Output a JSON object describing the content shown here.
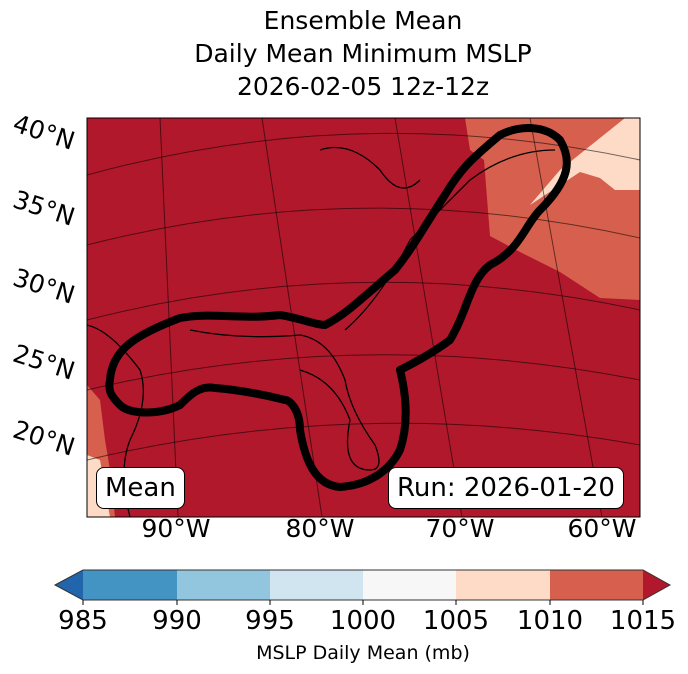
{
  "title": {
    "line1": "Ensemble Mean",
    "line2": "Daily Mean Minimum MSLP",
    "line3": "2026-02-05 12z-12z"
  },
  "map": {
    "lat_labels": [
      "40°N",
      "35°N",
      "30°N",
      "25°N",
      "20°N"
    ],
    "lon_labels": [
      "90°W",
      "80°W",
      "70°W",
      "60°W"
    ],
    "mean_label": "Mean",
    "run_label": "Run: 2026-01-20",
    "colors": {
      "ge1015": "#b2182b",
      "1010_1015": "#d6604d",
      "1005_1010": "#fddbc7",
      "contour": "#000000"
    }
  },
  "colorbar": {
    "label": "MSLP Daily Mean (mb)",
    "ticks": [
      "985",
      "990",
      "995",
      "1000",
      "1005",
      "1010",
      "1015"
    ],
    "colors": [
      "#2166ac",
      "#4393c3",
      "#92c5de",
      "#d1e5f0",
      "#f7f7f7",
      "#fddbc7",
      "#d6604d",
      "#b2182b"
    ]
  }
}
